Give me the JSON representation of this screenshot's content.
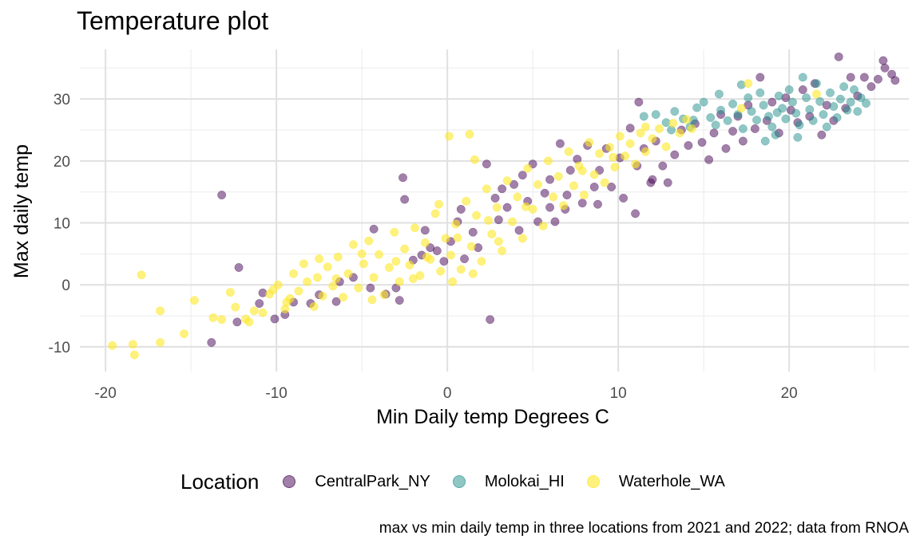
{
  "title": "Temperature plot",
  "caption": "max vs min daily temp in three locations from 2021 and 2022; data from RNOA",
  "chart_data": {
    "type": "scatter",
    "title": "Temperature plot",
    "xlabel": "Min Daily temp Degrees C",
    "ylabel": "Max daily temp",
    "xlim": [
      -21.5,
      27
    ],
    "ylim": [
      -14,
      38
    ],
    "xticks": [
      -20,
      -10,
      0,
      10,
      20
    ],
    "yticks": [
      -10,
      0,
      10,
      20,
      30
    ],
    "xtick_labels": [
      "-20",
      "-10",
      "0",
      "10",
      "20"
    ],
    "ytick_labels": [
      "-10",
      "0",
      "10",
      "20",
      "30"
    ],
    "grid": true,
    "point_alpha": 0.5,
    "legend": {
      "title": "Location",
      "position": "bottom"
    },
    "series": [
      {
        "name": "CentralPark_NY",
        "color": "#440154",
        "points": [
          [
            -13.2,
            14.5
          ],
          [
            -12.2,
            2.8
          ],
          [
            -12.3,
            -6
          ],
          [
            -13.8,
            -9.3
          ],
          [
            -10.1,
            -5.5
          ],
          [
            -11,
            -3
          ],
          [
            -10.8,
            -1.3
          ],
          [
            -9.5,
            -4.8
          ],
          [
            -9,
            -2.8
          ],
          [
            -8,
            -3
          ],
          [
            -7.5,
            -1.6
          ],
          [
            -6.5,
            -2.7
          ],
          [
            -6.3,
            0.5
          ],
          [
            -5.5,
            1.2
          ],
          [
            -4.5,
            -0.5
          ],
          [
            -4.3,
            9
          ],
          [
            -3.6,
            -1.5
          ],
          [
            -3,
            -0.5
          ],
          [
            -2.8,
            -2.5
          ],
          [
            -2.5,
            13.8
          ],
          [
            -2.6,
            17.3
          ],
          [
            -2,
            4
          ],
          [
            -1.5,
            4.8
          ],
          [
            -1.3,
            8.8
          ],
          [
            -1,
            6
          ],
          [
            -0.6,
            5.5
          ],
          [
            -0.2,
            3.8
          ],
          [
            0.2,
            7
          ],
          [
            0.6,
            10.2
          ],
          [
            0.8,
            12.2
          ],
          [
            1,
            4.2
          ],
          [
            1.5,
            8.5
          ],
          [
            1.8,
            6
          ],
          [
            2.3,
            19.5
          ],
          [
            2.8,
            14
          ],
          [
            3,
            10.5
          ],
          [
            3.2,
            15.5
          ],
          [
            3.5,
            12.5
          ],
          [
            3.9,
            16.2
          ],
          [
            4.2,
            8.8
          ],
          [
            4.4,
            17.7
          ],
          [
            4.7,
            13.5
          ],
          [
            5,
            19.5
          ],
          [
            5.3,
            10.2
          ],
          [
            5.7,
            14.8
          ],
          [
            6,
            17
          ],
          [
            6.3,
            10.2
          ],
          [
            6.6,
            22.8
          ],
          [
            6.9,
            12.2
          ],
          [
            7.2,
            18.5
          ],
          [
            7.6,
            20.3
          ],
          [
            7.9,
            13.2
          ],
          [
            8.2,
            22.5
          ],
          [
            8.6,
            15.8
          ],
          [
            8.9,
            18.5
          ],
          [
            9.3,
            22
          ],
          [
            9.6,
            15.8
          ],
          [
            10.1,
            20.5
          ],
          [
            10.3,
            14
          ],
          [
            10.7,
            25.3
          ],
          [
            11.1,
            19.2
          ],
          [
            11.5,
            22
          ],
          [
            11.9,
            16.5
          ],
          [
            12.2,
            23.2
          ],
          [
            12.6,
            19.2
          ],
          [
            12.9,
            16.5
          ],
          [
            13.3,
            21
          ],
          [
            13.7,
            25
          ],
          [
            14.1,
            22.5
          ],
          [
            14.5,
            26
          ],
          [
            14.9,
            23
          ],
          [
            15.3,
            20.2
          ],
          [
            15.6,
            24.5
          ],
          [
            16,
            27.5
          ],
          [
            16.3,
            22
          ],
          [
            16.7,
            24.8
          ],
          [
            17,
            27.2
          ],
          [
            17.3,
            23.2
          ],
          [
            17.6,
            29
          ],
          [
            18,
            25.2
          ],
          [
            18.3,
            33.5
          ],
          [
            18.7,
            26.5
          ],
          [
            19,
            29.5
          ],
          [
            19.4,
            24.5
          ],
          [
            19.8,
            30.2
          ],
          [
            20.1,
            28.2
          ],
          [
            20.5,
            26.2
          ],
          [
            20.8,
            31.5
          ],
          [
            21.2,
            27.2
          ],
          [
            21.5,
            32.5
          ],
          [
            21.9,
            24.2
          ],
          [
            22.2,
            29
          ],
          [
            22.6,
            26.5
          ],
          [
            22.9,
            36.8
          ],
          [
            23.3,
            28.5
          ],
          [
            23.6,
            33.5
          ],
          [
            24,
            30.5
          ],
          [
            24.4,
            33.5
          ],
          [
            24.8,
            32
          ],
          [
            25.2,
            33.2
          ],
          [
            25.6,
            35
          ],
          [
            25.5,
            36.2
          ],
          [
            26,
            34
          ],
          [
            26.2,
            33
          ],
          [
            11.2,
            29.5
          ],
          [
            8.8,
            13
          ],
          [
            12,
            17
          ],
          [
            7,
            14.5
          ],
          [
            11,
            11.5
          ],
          [
            6,
            12.5
          ],
          [
            2.5,
            -5.6
          ]
        ]
      },
      {
        "name": "Molokai_HI",
        "color": "#21908C",
        "points": [
          [
            11.5,
            27.2
          ],
          [
            12.2,
            27.5
          ],
          [
            12.8,
            26.2
          ],
          [
            13.3,
            28
          ],
          [
            13.8,
            26.8
          ],
          [
            14.2,
            25.5
          ],
          [
            14.6,
            28.6
          ],
          [
            15,
            29.5
          ],
          [
            15.4,
            27
          ],
          [
            15.7,
            25.8
          ],
          [
            16,
            28.2
          ],
          [
            16.4,
            26.5
          ],
          [
            16.7,
            29.2
          ],
          [
            17,
            27.5
          ],
          [
            17.3,
            25.2
          ],
          [
            17.6,
            30.2
          ],
          [
            17.8,
            28
          ],
          [
            18.1,
            26.6
          ],
          [
            18.3,
            31
          ],
          [
            18.5,
            29
          ],
          [
            18.8,
            27.2
          ],
          [
            19,
            25.5
          ],
          [
            19.2,
            24.2
          ],
          [
            19.4,
            30.5
          ],
          [
            19.6,
            28.5
          ],
          [
            19.8,
            26.8
          ],
          [
            20,
            31.5
          ],
          [
            20.2,
            29.5
          ],
          [
            20.4,
            27.7
          ],
          [
            20.6,
            25.8
          ],
          [
            20.8,
            33.5
          ],
          [
            21,
            30.2
          ],
          [
            21.2,
            28.3
          ],
          [
            21.4,
            26.5
          ],
          [
            21.6,
            32.5
          ],
          [
            21.8,
            29.6
          ],
          [
            22,
            27.5
          ],
          [
            22.2,
            25.5
          ],
          [
            22.4,
            31
          ],
          [
            22.6,
            28.8
          ],
          [
            22.8,
            27
          ],
          [
            23,
            30
          ],
          [
            23.2,
            32
          ],
          [
            23.4,
            28.2
          ],
          [
            23.6,
            29.5
          ],
          [
            23.8,
            31.5
          ],
          [
            24,
            28
          ],
          [
            24.2,
            30.2
          ],
          [
            24.5,
            29.3
          ],
          [
            17.2,
            32.3
          ],
          [
            18.6,
            23.2
          ],
          [
            19.3,
            27.8
          ],
          [
            20.5,
            23.8
          ],
          [
            15.9,
            30.8
          ],
          [
            14.4,
            26.6
          ],
          [
            13.1,
            25
          ]
        ]
      },
      {
        "name": "Waterhole_WA",
        "color": "#FDE725",
        "points": [
          [
            -19.6,
            -9.8
          ],
          [
            -18.4,
            -9.6
          ],
          [
            -18.3,
            -11.3
          ],
          [
            -17.9,
            1.6
          ],
          [
            -16.8,
            -4.2
          ],
          [
            -16.8,
            -9.3
          ],
          [
            -15.4,
            -7.9
          ],
          [
            -14.8,
            -2.5
          ],
          [
            -13.7,
            -5.3
          ],
          [
            -13.2,
            -5.6
          ],
          [
            -12.7,
            -1.2
          ],
          [
            -12.4,
            -3.6
          ],
          [
            -11.8,
            -5.5
          ],
          [
            -11.6,
            -6
          ],
          [
            -11.3,
            -4.2
          ],
          [
            -10.8,
            -4.5
          ],
          [
            -10.4,
            -1.5
          ],
          [
            -10.2,
            -0.8
          ],
          [
            -9.9,
            0
          ],
          [
            -9.5,
            -3.9
          ],
          [
            -9.2,
            -2.2
          ],
          [
            -9,
            1.8
          ],
          [
            -8.7,
            -1
          ],
          [
            -8.4,
            3.4
          ],
          [
            -8.2,
            0.5
          ],
          [
            -7.8,
            -3.5
          ],
          [
            -7.6,
            1.2
          ],
          [
            -7.3,
            -1.8
          ],
          [
            -7,
            2.9
          ],
          [
            -6.7,
            -0.2
          ],
          [
            -6.4,
            4.5
          ],
          [
            -6.1,
            -2
          ],
          [
            -5.8,
            1.8
          ],
          [
            -5.5,
            6.5
          ],
          [
            -5.2,
            -0.5
          ],
          [
            -4.9,
            3.4
          ],
          [
            -4.6,
            7.1
          ],
          [
            -4.3,
            1.2
          ],
          [
            -4,
            4.9
          ],
          [
            -3.7,
            -1.6
          ],
          [
            -3.4,
            2.8
          ],
          [
            -3.1,
            8.5
          ],
          [
            -2.8,
            0.5
          ],
          [
            -2.5,
            5.8
          ],
          [
            -2.2,
            3.2
          ],
          [
            -1.9,
            9.2
          ],
          [
            -1.6,
            1.5
          ],
          [
            -1.3,
            6.8
          ],
          [
            -1,
            4.1
          ],
          [
            -0.7,
            11.5
          ],
          [
            -0.4,
            2.2
          ],
          [
            -0.1,
            7.5
          ],
          [
            0.1,
            24
          ],
          [
            0.2,
            4.8
          ],
          [
            0.5,
            9.8
          ],
          [
            0.8,
            2.5
          ],
          [
            1.1,
            13.5
          ],
          [
            1.3,
            24.3
          ],
          [
            1.4,
            6.2
          ],
          [
            1.6,
            20.2
          ],
          [
            1.7,
            11.2
          ],
          [
            2,
            3.8
          ],
          [
            2.3,
            15.5
          ],
          [
            2.6,
            8.2
          ],
          [
            2.9,
            12.5
          ],
          [
            3.2,
            5.5
          ],
          [
            3.5,
            16.8
          ],
          [
            3.8,
            10.2
          ],
          [
            4.1,
            14.2
          ],
          [
            4.4,
            7.5
          ],
          [
            4.7,
            18.8
          ],
          [
            5,
            12.2
          ],
          [
            5.3,
            16.2
          ],
          [
            5.6,
            9.5
          ],
          [
            5.9,
            20
          ],
          [
            6.2,
            14.2
          ],
          [
            6.5,
            17.5
          ],
          [
            6.8,
            12.8
          ],
          [
            7.1,
            21.5
          ],
          [
            7.4,
            16
          ],
          [
            7.7,
            19.2
          ],
          [
            8,
            14.5
          ],
          [
            8.3,
            23
          ],
          [
            8.6,
            17.8
          ],
          [
            8.9,
            21.2
          ],
          [
            9.2,
            16.5
          ],
          [
            9.5,
            22.2
          ],
          [
            9.8,
            19
          ],
          [
            10.1,
            24
          ],
          [
            10.4,
            20.8
          ],
          [
            10.7,
            22.8
          ],
          [
            11,
            19.5
          ],
          [
            11.3,
            24.5
          ],
          [
            11.6,
            21.5
          ],
          [
            12,
            23.6
          ],
          [
            12.4,
            25.2
          ],
          [
            12.8,
            22.3
          ],
          [
            13.2,
            26.1
          ],
          [
            13.6,
            24.5
          ],
          [
            14,
            26.7
          ],
          [
            14.3,
            25.2
          ],
          [
            17.2,
            28.5
          ],
          [
            17.6,
            32.5
          ],
          [
            21.6,
            30.8
          ],
          [
            -1.2,
            4.5
          ],
          [
            0.3,
            0.5
          ],
          [
            -3,
            3.8
          ],
          [
            -5,
            5
          ],
          [
            -6.5,
            1
          ],
          [
            -2,
            1
          ],
          [
            1.5,
            1.8
          ],
          [
            3,
            7
          ],
          [
            -7.5,
            4.2
          ],
          [
            -9.4,
            -2.8
          ],
          [
            -4.4,
            -2.4
          ],
          [
            0.6,
            7.6
          ],
          [
            2.4,
            10.4
          ],
          [
            4.6,
            12.6
          ],
          [
            -0.5,
            13
          ],
          [
            7.9,
            18.4
          ],
          [
            9.7,
            20.6
          ],
          [
            11.6,
            25.5
          ]
        ]
      }
    ]
  },
  "legend": {
    "title": "Location",
    "items": [
      {
        "label": "CentralPark_NY",
        "color": "#440154"
      },
      {
        "label": "Molokai_HI",
        "color": "#21908C"
      },
      {
        "label": "Waterhole_WA",
        "color": "#FDE725"
      }
    ]
  }
}
